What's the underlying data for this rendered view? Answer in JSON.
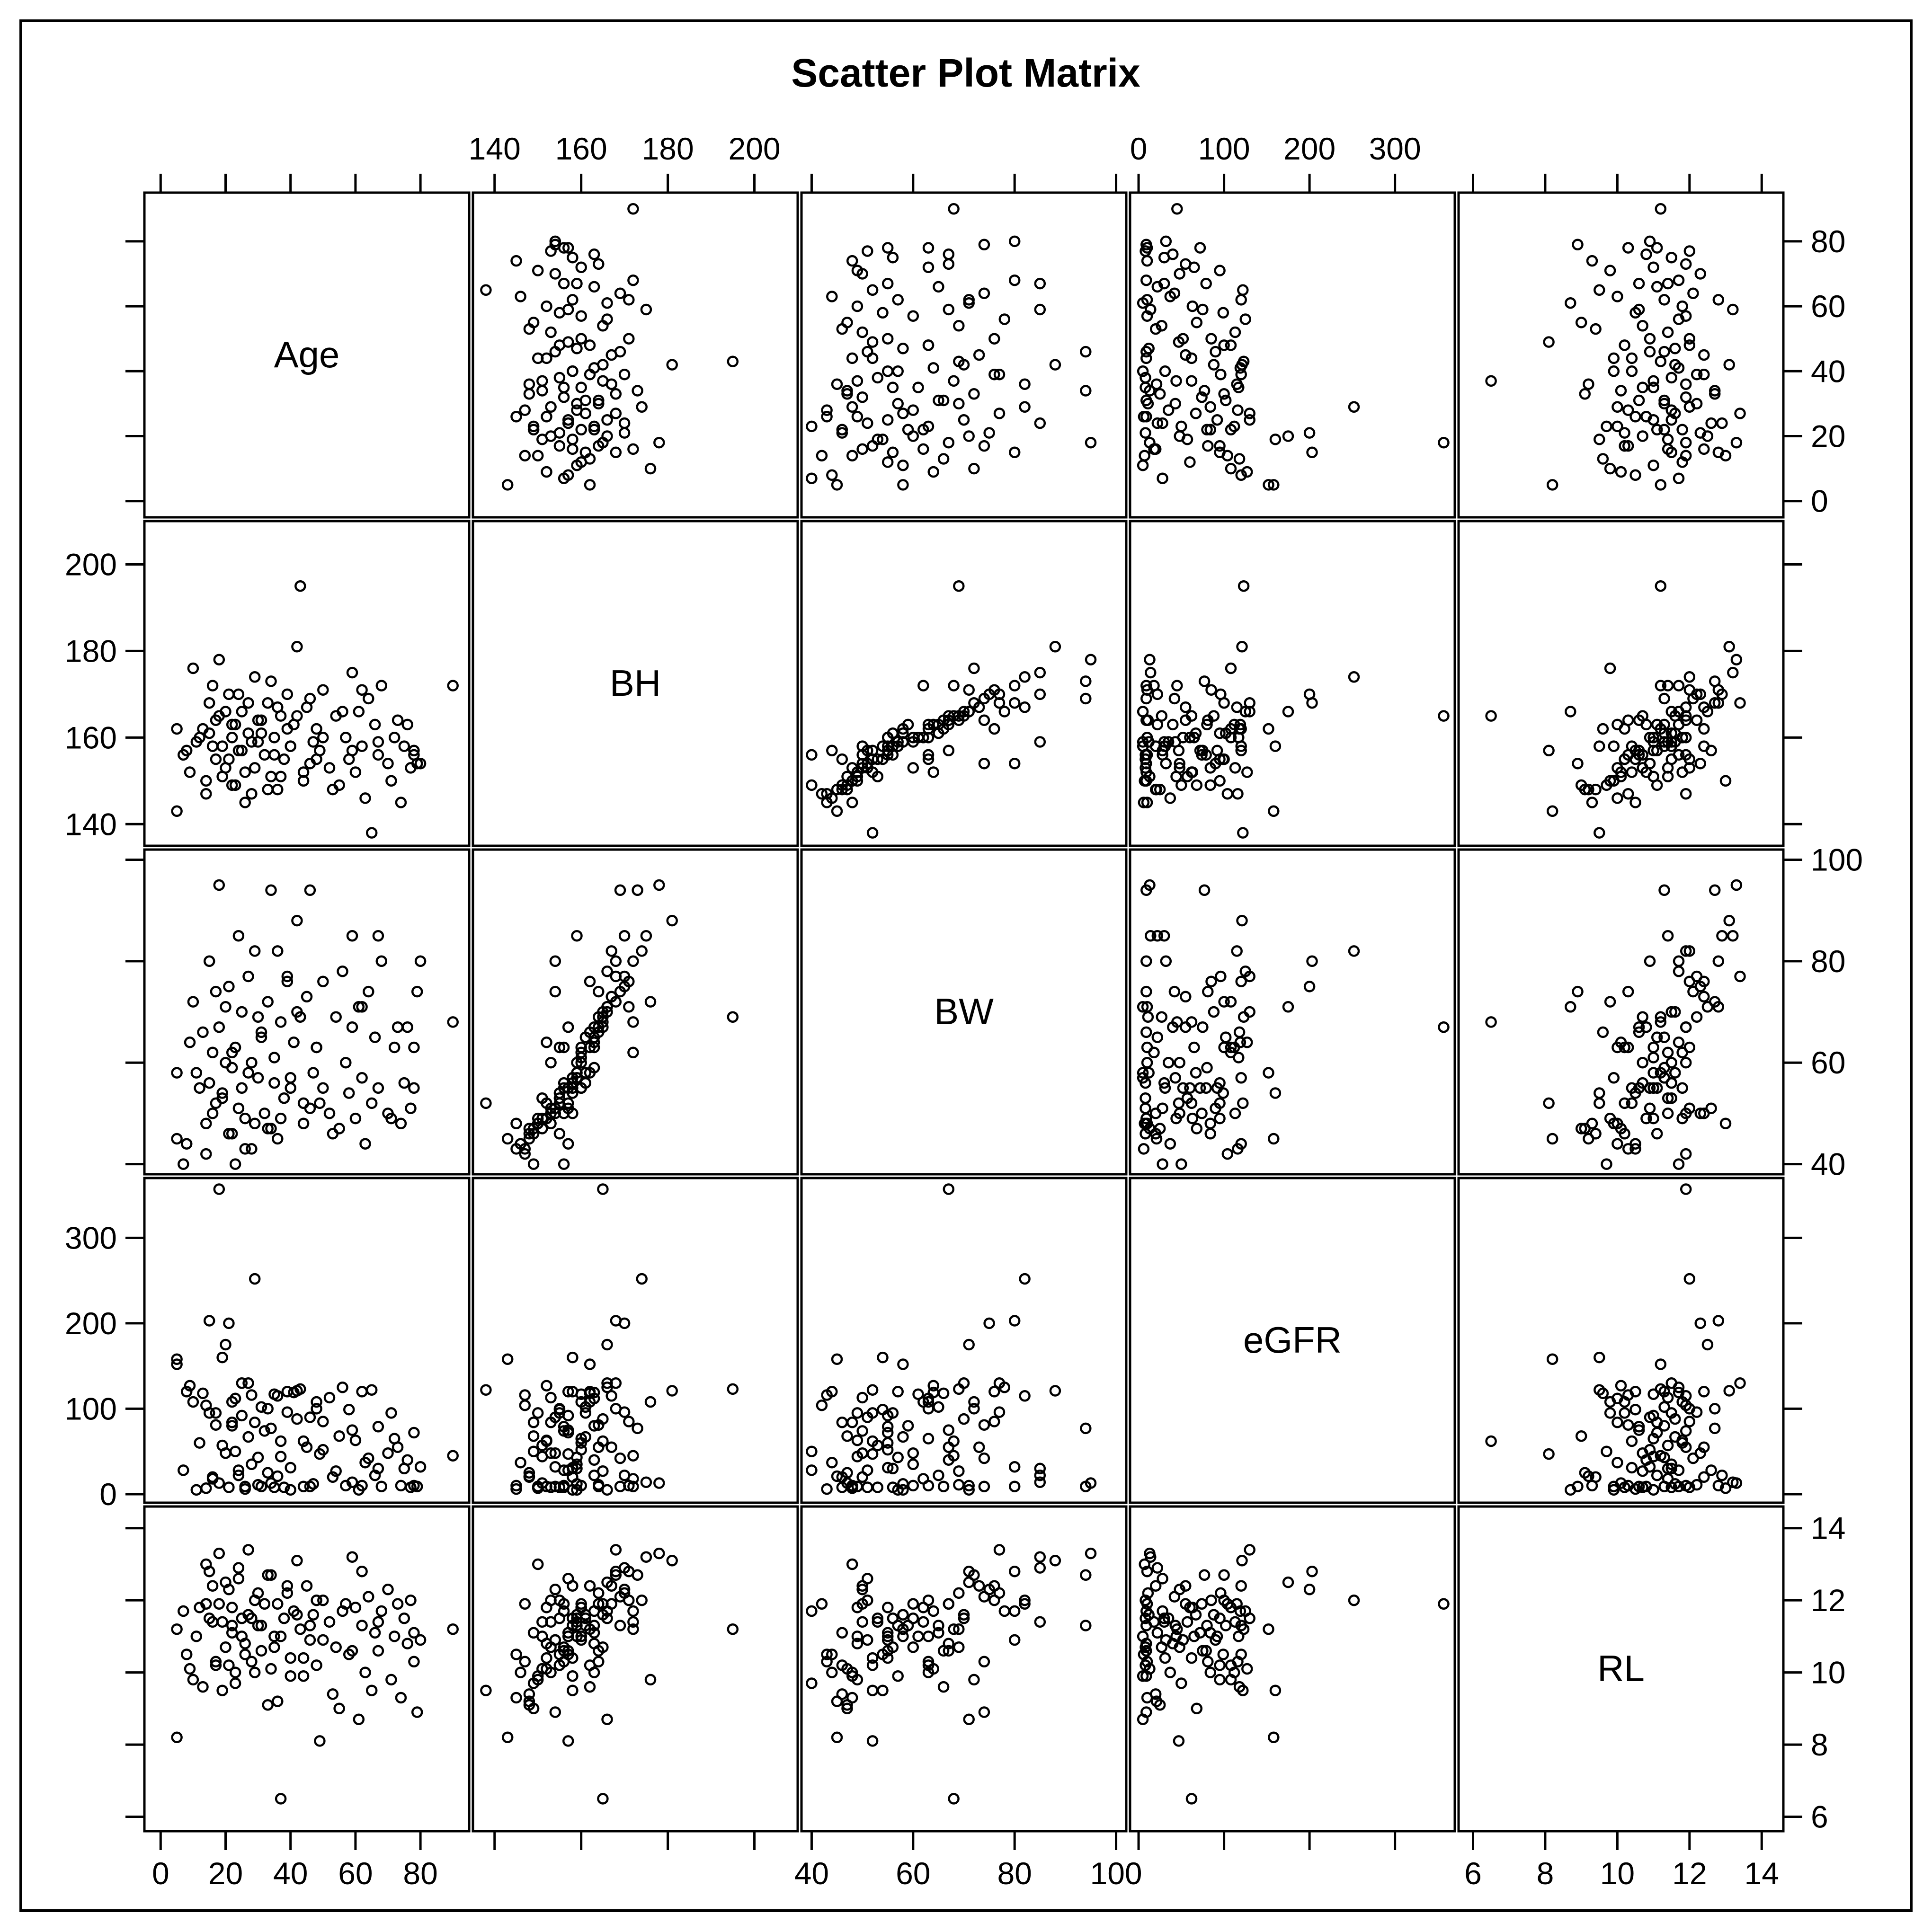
{
  "chart_data": {
    "type": "scatter",
    "title": "Scatter Plot Matrix",
    "variables": [
      {
        "name": "Age",
        "range": [
          -5,
          95
        ],
        "ticks": [
          0,
          20,
          40,
          60,
          80
        ]
      },
      {
        "name": "BH",
        "range": [
          135,
          210
        ],
        "ticks": [
          140,
          160,
          180,
          200
        ]
      },
      {
        "name": "BW",
        "range": [
          38,
          102
        ],
        "ticks": [
          40,
          60,
          80,
          100
        ]
      },
      {
        "name": "eGFR",
        "range": [
          -10,
          370
        ],
        "ticks": [
          0,
          100,
          200,
          300
        ]
      },
      {
        "name": "RL",
        "range": [
          5.6,
          14.6
        ],
        "ticks": [
          6,
          8,
          10,
          12,
          14
        ]
      }
    ],
    "tick_labels": {
      "Age": [
        "0",
        "20",
        "40",
        "60",
        "80"
      ],
      "BH": [
        "140",
        "160",
        "180",
        "200"
      ],
      "BW": [
        "40",
        "60",
        "80",
        "100"
      ],
      "eGFR": [
        "0",
        "100",
        "200",
        "300"
      ],
      "RL": [
        "6",
        "8",
        "10",
        "12",
        "14"
      ]
    },
    "grid": false,
    "legend": "none",
    "marker": "open-circle",
    "marker_color": "#000000",
    "observations": [
      [
        5,
        162,
        58,
        152,
        11.2
      ],
      [
        8,
        157,
        44,
        120,
        10.5
      ],
      [
        10,
        176,
        72,
        108,
        9.8
      ],
      [
        12,
        160,
        55,
        60,
        11.8
      ],
      [
        14,
        150,
        48,
        7,
        13.0
      ],
      [
        15,
        168,
        80,
        203,
        12.8
      ],
      [
        16,
        172,
        62,
        18,
        11.4
      ],
      [
        17,
        155,
        52,
        95,
        10.2
      ],
      [
        18,
        165,
        67,
        357,
        11.9
      ],
      [
        19,
        158,
        54,
        160,
        9.5
      ],
      [
        20,
        153,
        60,
        48,
        10.7
      ],
      [
        21,
        170,
        75,
        200,
        12.3
      ],
      [
        22,
        149,
        46,
        84,
        11.1
      ],
      [
        23,
        163,
        63,
        112,
        10.0
      ],
      [
        24,
        157,
        51,
        28,
        12.6
      ],
      [
        25,
        166,
        70,
        130,
        11.5
      ],
      [
        26,
        152,
        49,
        9,
        10.8
      ],
      [
        27,
        161,
        58,
        67,
        11.6
      ],
      [
        28,
        147,
        43,
        116,
        10.3
      ],
      [
        29,
        174,
        82,
        252,
        12.0
      ],
      [
        30,
        159,
        57,
        43,
        11.3
      ],
      [
        31,
        164,
        66,
        9,
        10.6
      ],
      [
        32,
        156,
        50,
        74,
        11.9
      ],
      [
        33,
        168,
        72,
        100,
        12.7
      ],
      [
        34,
        151,
        47,
        13,
        10.1
      ],
      [
        35,
        160,
        61,
        117,
        11.0
      ],
      [
        36,
        148,
        45,
        21,
        9.2
      ],
      [
        37,
        165,
        68,
        62,
        6.5
      ],
      [
        38,
        155,
        53,
        8,
        11.5
      ],
      [
        39,
        170,
        77,
        96,
        12.2
      ],
      [
        40,
        158,
        55,
        31,
        10.4
      ],
      [
        41,
        163,
        64,
        119,
        11.7
      ],
      [
        42,
        181,
        88,
        121,
        13.1
      ],
      [
        43,
        195,
        69,
        123,
        11.2
      ],
      [
        44,
        150,
        48,
        9,
        9.9
      ],
      [
        45,
        167,
        73,
        55,
        12.4
      ],
      [
        46,
        154,
        51,
        90,
        10.9
      ],
      [
        47,
        159,
        58,
        12,
        11.6
      ],
      [
        48,
        162,
        63,
        108,
        10.2
      ],
      [
        49,
        157,
        52,
        47,
        8.1
      ],
      [
        50,
        171,
        76,
        85,
        12.0
      ],
      [
        52,
        153,
        50,
        113,
        11.4
      ],
      [
        54,
        165,
        69,
        27,
        10.7
      ],
      [
        55,
        149,
        47,
        68,
        9.0
      ],
      [
        57,
        160,
        60,
        10,
        11.9
      ],
      [
        58,
        155,
        54,
        99,
        10.5
      ],
      [
        59,
        175,
        85,
        14,
        13.2
      ],
      [
        60,
        152,
        49,
        63,
        11.8
      ],
      [
        61,
        166,
        71,
        5,
        8.7
      ],
      [
        62,
        158,
        57,
        120,
        11.3
      ],
      [
        63,
        146,
        44,
        37,
        10.0
      ],
      [
        64,
        169,
        74,
        42,
        12.1
      ],
      [
        65,
        138,
        52,
        122,
        9.5
      ],
      [
        66,
        163,
        65,
        22,
        11.1
      ],
      [
        67,
        156,
        55,
        79,
        10.6
      ],
      [
        68,
        172,
        80,
        9,
        11.7
      ],
      [
        70,
        154,
        50,
        48,
        12.3
      ],
      [
        72,
        160,
        63,
        65,
        11.0
      ],
      [
        74,
        145,
        48,
        10,
        9.3
      ],
      [
        75,
        158,
        56,
        30,
        11.5
      ],
      [
        76,
        163,
        67,
        40,
        10.8
      ],
      [
        77,
        153,
        51,
        8,
        12.0
      ],
      [
        78,
        157,
        55,
        72,
        11.1
      ],
      [
        79,
        154,
        74,
        9,
        8.9
      ],
      [
        80,
        154,
        80,
        32,
        10.9
      ],
      [
        90,
        172,
        68,
        45,
        11.2
      ],
      [
        5,
        143,
        45,
        158,
        8.2
      ],
      [
        7,
        156,
        40,
        28,
        11.7
      ],
      [
        9,
        152,
        64,
        127,
        10.1
      ],
      [
        11,
        159,
        58,
        5,
        11.0
      ],
      [
        13,
        162,
        66,
        118,
        9.6
      ],
      [
        14,
        147,
        42,
        104,
        11.9
      ],
      [
        16,
        158,
        50,
        20,
        12.4
      ],
      [
        17,
        164,
        74,
        81,
        10.3
      ],
      [
        18,
        178,
        95,
        13,
        13.3
      ],
      [
        19,
        151,
        53,
        57,
        11.4
      ],
      [
        20,
        166,
        71,
        175,
        12.5
      ],
      [
        21,
        155,
        46,
        8,
        10.2
      ],
      [
        22,
        160,
        62,
        108,
        11.8
      ],
      [
        23,
        149,
        40,
        50,
        9.7
      ],
      [
        24,
        170,
        85,
        22,
        12.9
      ],
      [
        25,
        157,
        55,
        92,
        11.0
      ],
      [
        26,
        145,
        43,
        6,
        10.5
      ],
      [
        27,
        168,
        77,
        130,
        13.4
      ],
      [
        28,
        159,
        60,
        35,
        11.5
      ],
      [
        29,
        153,
        48,
        84,
        10.0
      ],
      [
        30,
        164,
        69,
        11,
        12.2
      ],
      [
        31,
        161,
        65,
        102,
        11.3
      ],
      [
        33,
        148,
        47,
        25,
        9.1
      ],
      [
        34,
        173,
        94,
        77,
        12.7
      ],
      [
        35,
        156,
        56,
        8,
        10.7
      ],
      [
        36,
        167,
        82,
        115,
        11.9
      ],
      [
        37,
        151,
        49,
        44,
        11.0
      ],
      [
        39,
        162,
        76,
        120,
        12.4
      ],
      [
        40,
        158,
        57,
        5,
        9.9
      ],
      [
        42,
        165,
        70,
        88,
        11.6
      ],
      [
        44,
        152,
        52,
        62,
        10.4
      ],
      [
        46,
        169,
        94,
        9,
        11.3
      ],
      [
        48,
        155,
        63,
        100,
        12.0
      ],
      [
        50,
        160,
        55,
        52,
        10.9
      ],
      [
        53,
        148,
        46,
        20,
        9.4
      ],
      [
        56,
        166,
        78,
        125,
        11.7
      ],
      [
        59,
        157,
        67,
        75,
        10.6
      ],
      [
        62,
        171,
        71,
        10,
        12.8
      ],
      [
        67,
        159,
        85,
        30,
        11.4
      ],
      [
        71,
        150,
        49,
        95,
        9.8
      ],
      [
        73,
        164,
        67,
        55,
        11.9
      ],
      [
        78,
        156,
        63,
        10,
        10.3
      ],
      [
        15,
        161,
        56,
        95,
        11.5
      ],
      [
        22,
        163,
        59,
        80,
        11.3
      ]
    ]
  }
}
